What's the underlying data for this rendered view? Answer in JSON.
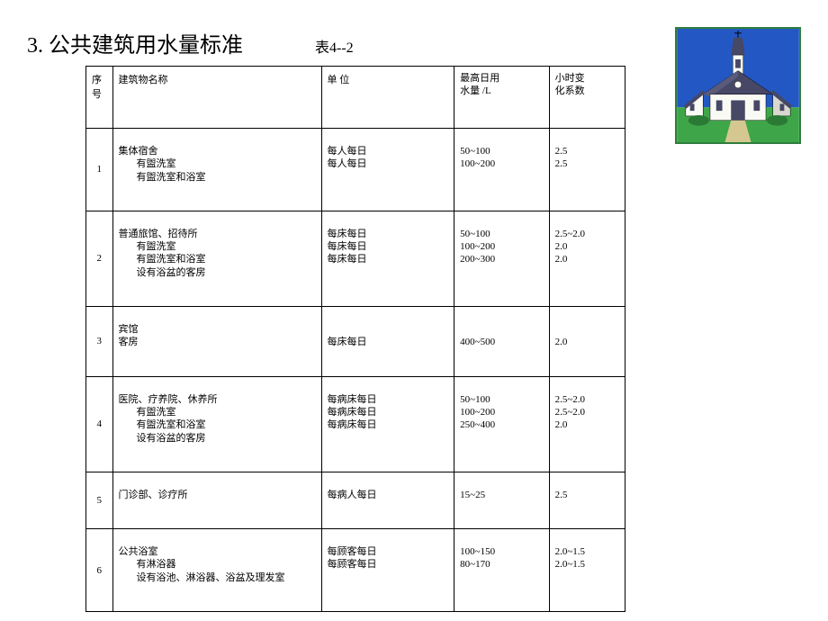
{
  "title": "3. 公共建筑用水量标准",
  "table_caption": "表4--2",
  "headers": {
    "seq": "序号",
    "name": "建筑物名称",
    "unit": "单 位",
    "amount": "最高日用水量 /L",
    "coef": "小时变化系数"
  },
  "rows": [
    {
      "seq": "1",
      "name_lines": [
        "集体宿舍"
      ],
      "name_indent": [
        "有盥洗室",
        "有盥洗室和浴室"
      ],
      "unit_lines": [
        "每人每日",
        "每人每日"
      ],
      "amount_lines": [
        "50~100",
        "100~200"
      ],
      "coef_lines": [
        "2.5",
        "2.5"
      ]
    },
    {
      "seq": "2",
      "name_lines": [
        "普通旅馆、招待所"
      ],
      "name_indent": [
        "有盥洗室",
        "有盥洗室和浴室",
        "设有浴盆的客房"
      ],
      "unit_lines": [
        "每床每日",
        "每床每日",
        "每床每日"
      ],
      "amount_lines": [
        "50~100",
        "100~200",
        "200~300"
      ],
      "coef_lines": [
        "2.5~2.0",
        "2.0",
        "2.0"
      ]
    },
    {
      "seq": "3",
      "name_lines": [
        "宾馆",
        "客房"
      ],
      "name_indent": [],
      "unit_lines": [
        "",
        "每床每日"
      ],
      "amount_lines": [
        "",
        "400~500"
      ],
      "coef_lines": [
        "",
        "2.0"
      ]
    },
    {
      "seq": "4",
      "name_lines": [
        "医院、疗养院、休养所"
      ],
      "name_indent": [
        "有盥洗室",
        "有盥洗室和浴室",
        "设有浴盆的客房"
      ],
      "unit_lines": [
        "每病床每日",
        "每病床每日",
        "每病床每日"
      ],
      "amount_lines": [
        "50~100",
        "100~200",
        "250~400"
      ],
      "coef_lines": [
        "2.5~2.0",
        "2.5~2.0",
        "2.0"
      ]
    },
    {
      "seq": "5",
      "name_lines": [
        "门诊部、诊疗所"
      ],
      "name_indent": [],
      "unit_lines": [
        "每病人每日"
      ],
      "amount_lines": [
        "15~25"
      ],
      "coef_lines": [
        "2.5"
      ]
    },
    {
      "seq": "6",
      "name_lines": [
        "公共浴室"
      ],
      "name_indent": [
        "有淋浴器",
        "设有浴池、淋浴器、浴盆及理发室"
      ],
      "unit_lines": [
        "每顾客每日",
        "每顾客每日"
      ],
      "amount_lines": [
        "100~150",
        "80~170"
      ],
      "coef_lines": [
        "2.0~1.5",
        "2.0~1.5"
      ]
    }
  ],
  "colors": {
    "border": "#000000",
    "text": "#000000",
    "bg": "#ffffff",
    "church_border": "#2e7d3e",
    "church_bg": "#dfefe0",
    "church_roof": "#3a3a5a",
    "church_wall": "#fafaf5",
    "church_sky": "#2358c4",
    "church_grass": "#3ea648"
  }
}
